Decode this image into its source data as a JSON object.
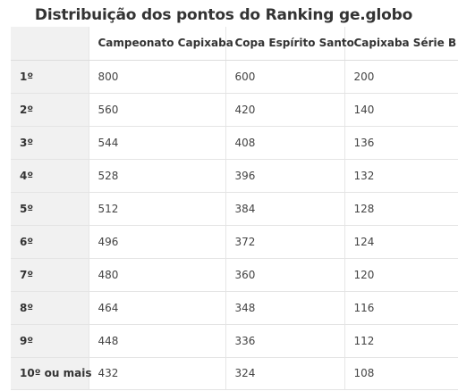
{
  "title": "Distribuição dos pontos do Ranking ge.globo",
  "table": {
    "columns": [
      "",
      "Campeonato Capixaba",
      "Copa Espírito Santo",
      "Capixaba Série B"
    ],
    "rows": [
      {
        "position": "1º",
        "values": [
          "800",
          "600",
          "200"
        ]
      },
      {
        "position": "2º",
        "values": [
          "560",
          "420",
          "140"
        ]
      },
      {
        "position": "3º",
        "values": [
          "544",
          "408",
          "136"
        ]
      },
      {
        "position": "4º",
        "values": [
          "528",
          "396",
          "132"
        ]
      },
      {
        "position": "5º",
        "values": [
          "512",
          "384",
          "128"
        ]
      },
      {
        "position": "6º",
        "values": [
          "496",
          "372",
          "124"
        ]
      },
      {
        "position": "7º",
        "values": [
          "480",
          "360",
          "120"
        ]
      },
      {
        "position": "8º",
        "values": [
          "464",
          "348",
          "116"
        ]
      },
      {
        "position": "9º",
        "values": [
          "448",
          "336",
          "112"
        ]
      },
      {
        "position": "10º ou mais",
        "values": [
          "432",
          "324",
          "108"
        ]
      }
    ]
  }
}
